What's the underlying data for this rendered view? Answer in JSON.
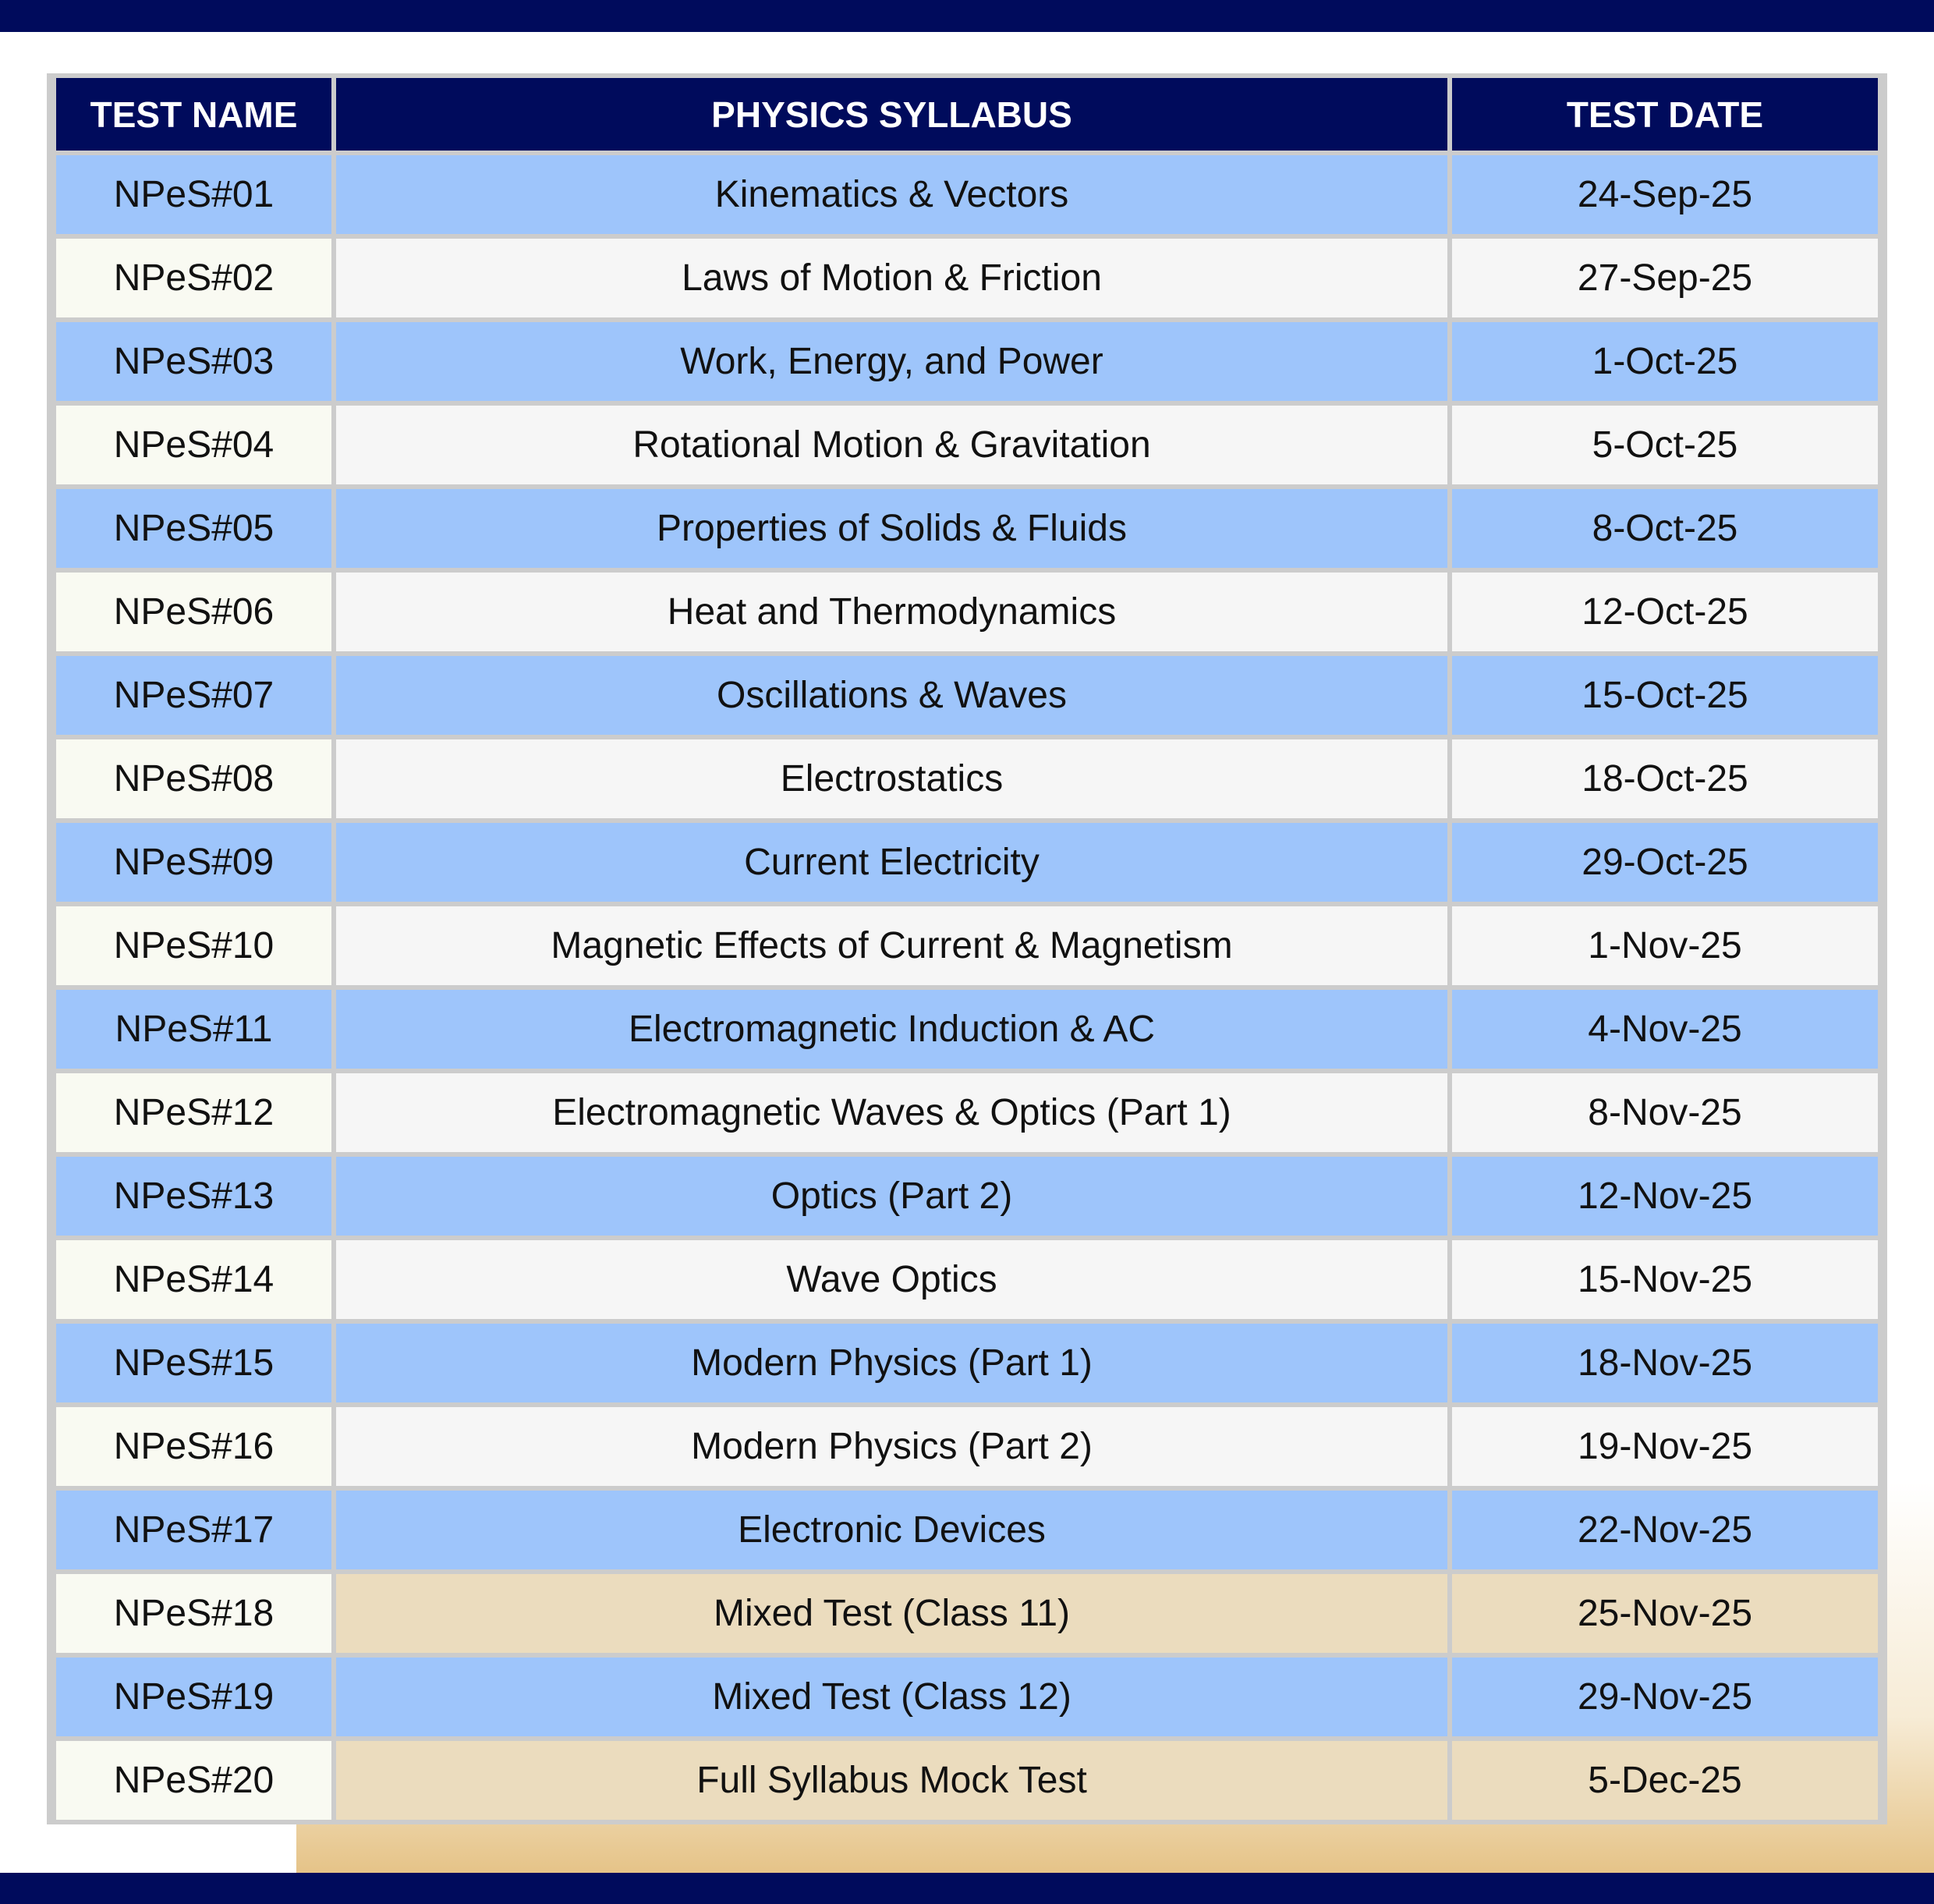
{
  "headers": {
    "test_name": "TEST NAME",
    "syllabus": "PHYSICS SYLLABUS",
    "test_date": "TEST DATE"
  },
  "colors": {
    "header_bg": "#000b5c",
    "row_blue": "#9ec5fb",
    "border": "#cccccc"
  },
  "rows": [
    {
      "name": "NPeS#01",
      "syllabus": "Kinematics & Vectors",
      "date": "24-Sep-25"
    },
    {
      "name": "NPeS#02",
      "syllabus": "Laws of Motion & Friction",
      "date": "27-Sep-25"
    },
    {
      "name": "NPeS#03",
      "syllabus": "Work, Energy, and Power",
      "date": "1-Oct-25"
    },
    {
      "name": "NPeS#04",
      "syllabus": "Rotational Motion & Gravitation",
      "date": "5-Oct-25"
    },
    {
      "name": "NPeS#05",
      "syllabus": "Properties of Solids & Fluids",
      "date": "8-Oct-25"
    },
    {
      "name": "NPeS#06",
      "syllabus": "Heat and Thermodynamics",
      "date": "12-Oct-25"
    },
    {
      "name": "NPeS#07",
      "syllabus": "Oscillations & Waves",
      "date": "15-Oct-25"
    },
    {
      "name": "NPeS#08",
      "syllabus": "Electrostatics",
      "date": "18-Oct-25"
    },
    {
      "name": "NPeS#09",
      "syllabus": "Current Electricity",
      "date": "29-Oct-25"
    },
    {
      "name": "NPeS#10",
      "syllabus": "Magnetic Effects of Current & Magnetism",
      "date": "1-Nov-25"
    },
    {
      "name": "NPeS#11",
      "syllabus": "Electromagnetic Induction & AC",
      "date": "4-Nov-25"
    },
    {
      "name": "NPeS#12",
      "syllabus": "Electromagnetic Waves & Optics (Part 1)",
      "date": "8-Nov-25"
    },
    {
      "name": "NPeS#13",
      "syllabus": "Optics (Part 2)",
      "date": "12-Nov-25"
    },
    {
      "name": "NPeS#14",
      "syllabus": "Wave Optics",
      "date": "15-Nov-25"
    },
    {
      "name": "NPeS#15",
      "syllabus": "Modern Physics (Part 1)",
      "date": "18-Nov-25"
    },
    {
      "name": "NPeS#16",
      "syllabus": "Modern Physics (Part 2)",
      "date": "19-Nov-25"
    },
    {
      "name": "NPeS#17",
      "syllabus": "Electronic Devices",
      "date": "22-Nov-25"
    },
    {
      "name": "NPeS#18",
      "syllabus": "Mixed Test (Class 11)",
      "date": "25-Nov-25"
    },
    {
      "name": "NPeS#19",
      "syllabus": "Mixed Test (Class 12)",
      "date": "29-Nov-25"
    },
    {
      "name": "NPeS#20",
      "syllabus": "Full Syllabus Mock Test",
      "date": "5-Dec-25"
    }
  ]
}
